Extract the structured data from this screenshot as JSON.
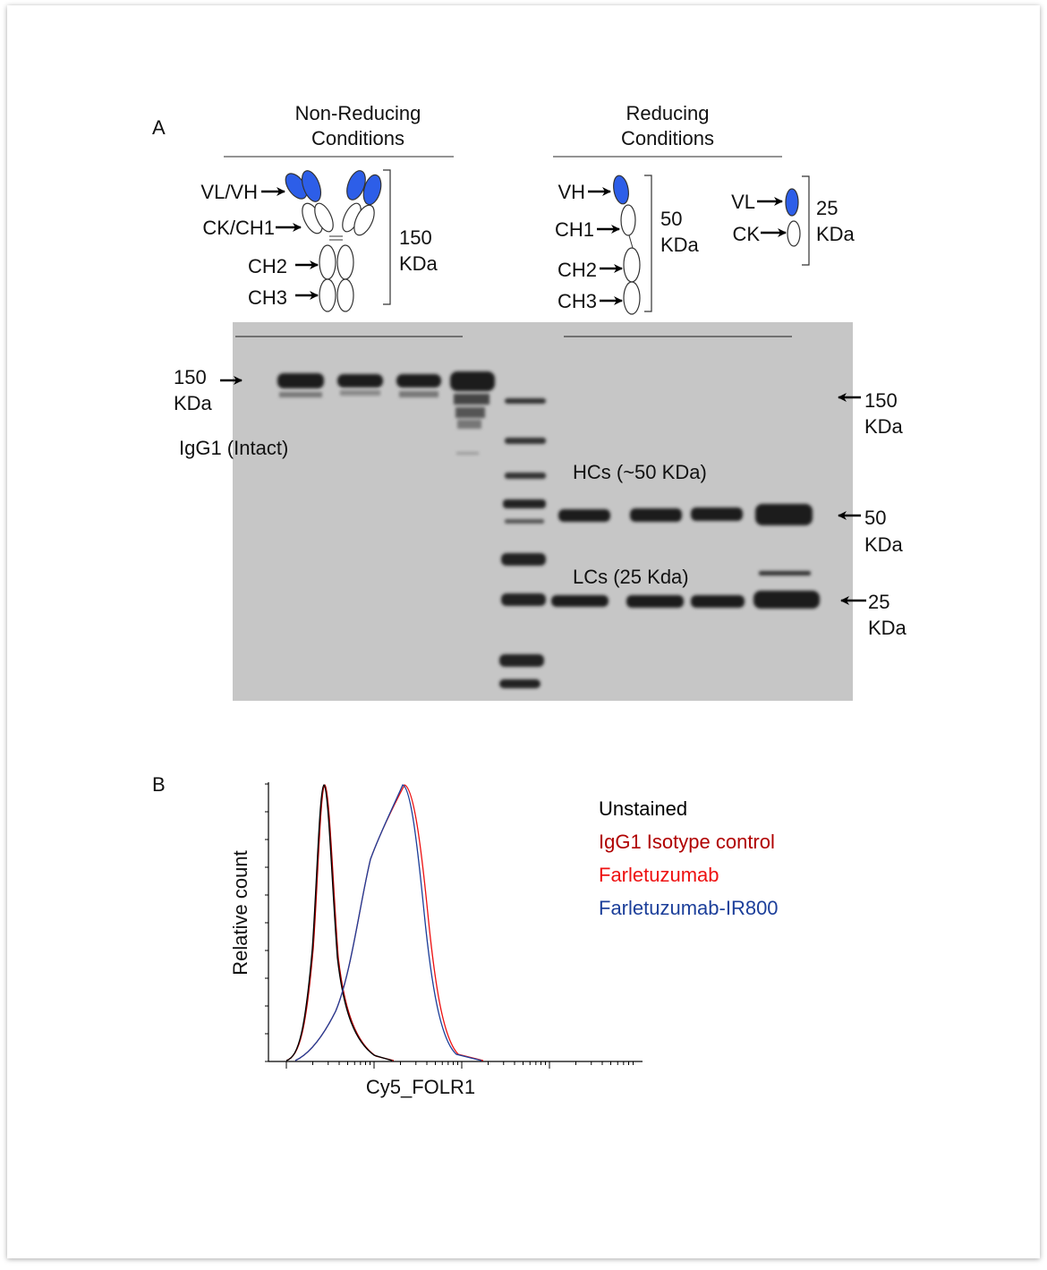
{
  "panel_a": {
    "label": "A",
    "non_reducing": {
      "title": [
        "Non-Reducing",
        "Conditions"
      ],
      "domains": [
        "VL/VH",
        "CK/CH1",
        "CH2",
        "CH3"
      ],
      "mass": [
        "150",
        "KDa"
      ]
    },
    "reducing": {
      "title": [
        "Reducing",
        "Conditions"
      ],
      "heavy_chain": {
        "domains": [
          "VH",
          "CH1",
          "CH2",
          "CH3"
        ],
        "mass": [
          "50",
          "KDa"
        ]
      },
      "light_chain": {
        "domains": [
          "VL",
          "CK"
        ],
        "mass": [
          "25",
          "KDa"
        ]
      }
    },
    "gel": {
      "left_marker": [
        "150",
        "KDa"
      ],
      "intact_label": "IgG1 (Intact)",
      "markers": [
        [
          "150",
          "KDa"
        ],
        [
          "50",
          "KDa"
        ],
        [
          "25",
          "KDa"
        ]
      ],
      "hc_label": "HCs (~50 KDa)",
      "lc_label": "LCs (25 Kda)"
    }
  },
  "panel_b": {
    "label": "B",
    "y_label": "Relative count",
    "x_label": "Cy5_FOLR1",
    "legend": [
      {
        "name": "Unstained",
        "color": "#000000"
      },
      {
        "name": "IgG1 Isotype control",
        "color": "#b00000"
      },
      {
        "name": "Farletuzumab",
        "color": "#ee1111"
      },
      {
        "name": "Farletuzumab-IR800",
        "color": "#1c3f9a"
      }
    ]
  }
}
